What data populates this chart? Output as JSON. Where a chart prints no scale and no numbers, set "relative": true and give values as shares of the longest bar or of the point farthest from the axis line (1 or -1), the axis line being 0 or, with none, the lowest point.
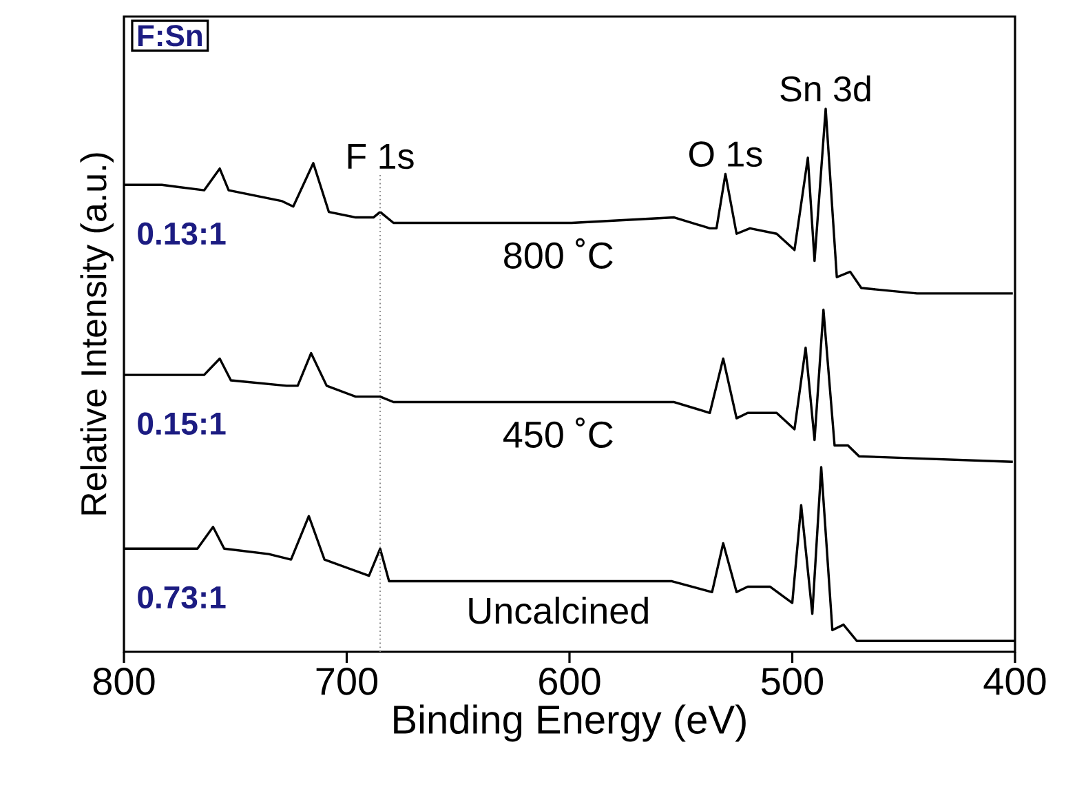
{
  "chart_data": {
    "type": "line",
    "title": "F:Sn",
    "xlabel": "Binding Energy (eV)",
    "ylabel": "Relative Intensity (a.u.)",
    "relative": true,
    "tick_labels": "x",
    "xlim": [
      800,
      400
    ],
    "xticks": [
      800,
      700,
      600,
      500,
      400
    ],
    "series": [
      {
        "name": "800 ˚C",
        "color": "#000000",
        "x": [
          800,
          783,
          764,
          757,
          753,
          729,
          724,
          715,
          708,
          696,
          688,
          685,
          679,
          599,
          553,
          537,
          534,
          530,
          525,
          519,
          507,
          499,
          493,
          490,
          485,
          480,
          474,
          469,
          444,
          401
        ],
        "values": [
          0.86,
          0.86,
          0.85,
          0.89,
          0.85,
          0.83,
          0.82,
          0.9,
          0.81,
          0.8,
          0.8,
          0.81,
          0.79,
          0.79,
          0.8,
          0.78,
          0.78,
          0.88,
          0.77,
          0.78,
          0.77,
          0.74,
          0.91,
          0.72,
          1.0,
          0.69,
          0.7,
          0.67,
          0.66,
          0.66
        ]
      },
      {
        "name": "450 ˚C",
        "color": "#000000",
        "x": [
          800,
          764,
          757,
          752,
          727,
          722,
          716,
          709,
          696,
          685,
          679,
          599,
          553,
          537,
          531,
          525,
          520,
          507,
          499,
          494,
          490,
          486,
          481,
          475,
          470,
          401
        ],
        "values": [
          0.51,
          0.51,
          0.54,
          0.5,
          0.49,
          0.49,
          0.55,
          0.49,
          0.47,
          0.47,
          0.46,
          0.46,
          0.46,
          0.44,
          0.54,
          0.43,
          0.44,
          0.44,
          0.41,
          0.56,
          0.39,
          0.63,
          0.38,
          0.38,
          0.36,
          0.35
        ]
      },
      {
        "name": "Uncalcined",
        "color": "#000000",
        "x": [
          800,
          767,
          760,
          755,
          735,
          725,
          717,
          710,
          690,
          685,
          681,
          674,
          669,
          599,
          554,
          536,
          531,
          525,
          520,
          510,
          500,
          496,
          491,
          487,
          482,
          477,
          471,
          402,
          400
        ],
        "values": [
          0.19,
          0.19,
          0.23,
          0.19,
          0.18,
          0.17,
          0.25,
          0.17,
          0.14,
          0.19,
          0.13,
          0.13,
          0.13,
          0.13,
          0.13,
          0.11,
          0.2,
          0.11,
          0.12,
          0.12,
          0.09,
          0.27,
          0.07,
          0.34,
          0.04,
          0.05,
          0.02,
          0.02,
          0.02
        ]
      }
    ],
    "ref_lines": [
      {
        "axis": "x",
        "value": 685,
        "color": "#808080",
        "line_style": "dotted"
      }
    ],
    "annotations": [
      {
        "text": "F 1s",
        "x": 685,
        "y": 0.81
      },
      {
        "text": "O 1s",
        "x": 530,
        "y": 0.88
      },
      {
        "text": "Sn 3d",
        "x": 485,
        "y": 1.0
      },
      "0.13:1",
      "0.15:1",
      "0.73:1"
    ]
  }
}
